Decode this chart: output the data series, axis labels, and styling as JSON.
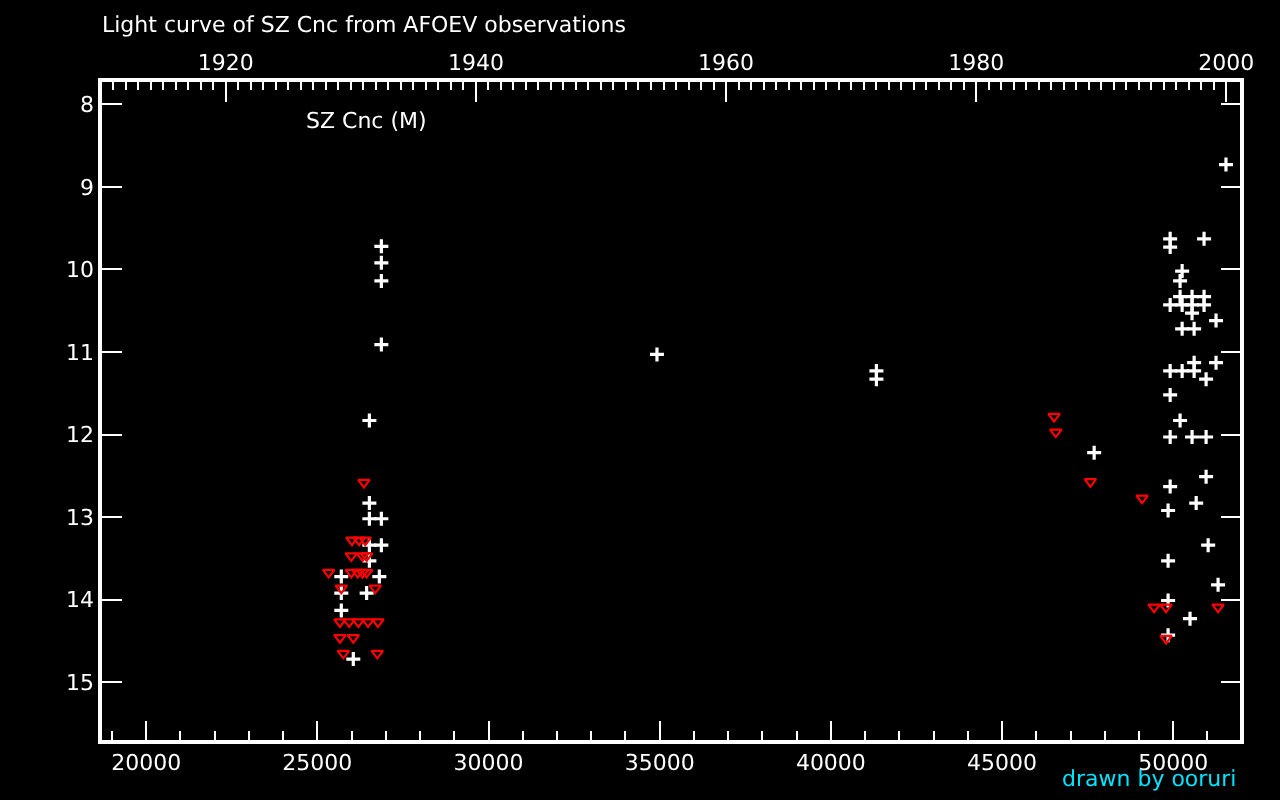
{
  "chart_data": {
    "type": "scatter",
    "title": "Light curve of SZ Cnc from AFOEV observations",
    "annotations": [
      "SZ Cnc (M)",
      "drawn by ooruri"
    ],
    "xlim": [
      18710,
      51950
    ],
    "ylim": [
      15.7,
      7.73
    ],
    "xticks": [
      {
        "value": 19000,
        "label": null
      },
      20000,
      {
        "value": 21000,
        "label": null
      },
      {
        "value": 22000,
        "label": null
      },
      {
        "value": 23000,
        "label": null
      },
      {
        "value": 24000,
        "label": null
      },
      25000,
      {
        "value": 26000,
        "label": null
      },
      {
        "value": 27000,
        "label": null
      },
      {
        "value": 28000,
        "label": null
      },
      {
        "value": 29000,
        "label": null
      },
      30000,
      {
        "value": 31000,
        "label": null
      },
      {
        "value": 32000,
        "label": null
      },
      {
        "value": 33000,
        "label": null
      },
      {
        "value": 34000,
        "label": null
      },
      35000,
      {
        "value": 36000,
        "label": null
      },
      {
        "value": 37000,
        "label": null
      },
      {
        "value": 38000,
        "label": null
      },
      {
        "value": 39000,
        "label": null
      },
      40000,
      {
        "value": 41000,
        "label": null
      },
      {
        "value": 42000,
        "label": null
      },
      {
        "value": 43000,
        "label": null
      },
      {
        "value": 44000,
        "label": null
      },
      45000,
      {
        "value": 46000,
        "label": null
      },
      {
        "value": 47000,
        "label": null
      },
      {
        "value": 48000,
        "label": null
      },
      {
        "value": 49000,
        "label": null
      },
      50000,
      {
        "value": 51000,
        "label": null
      }
    ],
    "yticks": [
      8,
      9,
      10,
      11,
      12,
      13,
      14,
      15
    ],
    "x2lim": [
      1910.1,
      2001.1
    ],
    "x2ticks": [
      {
        "value": 1911,
        "label": null
      },
      {
        "value": 1912,
        "label": null
      },
      {
        "value": 1913,
        "label": null
      },
      {
        "value": 1914,
        "label": null
      },
      {
        "value": 1915,
        "label": null
      },
      {
        "value": 1916,
        "label": null
      },
      {
        "value": 1917,
        "label": null
      },
      {
        "value": 1918,
        "label": null
      },
      {
        "value": 1919,
        "label": null
      },
      1920,
      {
        "value": 1921,
        "label": null
      },
      {
        "value": 1922,
        "label": null
      },
      {
        "value": 1923,
        "label": null
      },
      {
        "value": 1924,
        "label": null
      },
      {
        "value": 1925,
        "label": null
      },
      {
        "value": 1926,
        "label": null
      },
      {
        "value": 1927,
        "label": null
      },
      {
        "value": 1928,
        "label": null
      },
      {
        "value": 1929,
        "label": null
      },
      {
        "value": 1930,
        "label": null
      },
      {
        "value": 1931,
        "label": null
      },
      {
        "value": 1932,
        "label": null
      },
      {
        "value": 1933,
        "label": null
      },
      {
        "value": 1934,
        "label": null
      },
      {
        "value": 1935,
        "label": null
      },
      {
        "value": 1936,
        "label": null
      },
      {
        "value": 1937,
        "label": null
      },
      {
        "value": 1938,
        "label": null
      },
      {
        "value": 1939,
        "label": null
      },
      1940,
      {
        "value": 1941,
        "label": null
      },
      {
        "value": 1942,
        "label": null
      },
      {
        "value": 1943,
        "label": null
      },
      {
        "value": 1944,
        "label": null
      },
      {
        "value": 1945,
        "label": null
      },
      {
        "value": 1946,
        "label": null
      },
      {
        "value": 1947,
        "label": null
      },
      {
        "value": 1948,
        "label": null
      },
      {
        "value": 1949,
        "label": null
      },
      {
        "value": 1950,
        "label": null
      },
      {
        "value": 1951,
        "label": null
      },
      {
        "value": 1952,
        "label": null
      },
      {
        "value": 1953,
        "label": null
      },
      {
        "value": 1954,
        "label": null
      },
      {
        "value": 1955,
        "label": null
      },
      {
        "value": 1956,
        "label": null
      },
      {
        "value": 1957,
        "label": null
      },
      {
        "value": 1958,
        "label": null
      },
      {
        "value": 1959,
        "label": null
      },
      1960,
      {
        "value": 1961,
        "label": null
      },
      {
        "value": 1962,
        "label": null
      },
      {
        "value": 1963,
        "label": null
      },
      {
        "value": 1964,
        "label": null
      },
      {
        "value": 1965,
        "label": null
      },
      {
        "value": 1966,
        "label": null
      },
      {
        "value": 1967,
        "label": null
      },
      {
        "value": 1968,
        "label": null
      },
      {
        "value": 1969,
        "label": null
      },
      {
        "value": 1970,
        "label": null
      },
      {
        "value": 1971,
        "label": null
      },
      {
        "value": 1972,
        "label": null
      },
      {
        "value": 1973,
        "label": null
      },
      {
        "value": 1974,
        "label": null
      },
      {
        "value": 1975,
        "label": null
      },
      {
        "value": 1976,
        "label": null
      },
      {
        "value": 1977,
        "label": null
      },
      {
        "value": 1978,
        "label": null
      },
      {
        "value": 1979,
        "label": null
      },
      1980,
      {
        "value": 1981,
        "label": null
      },
      {
        "value": 1982,
        "label": null
      },
      {
        "value": 1983,
        "label": null
      },
      {
        "value": 1984,
        "label": null
      },
      {
        "value": 1985,
        "label": null
      },
      {
        "value": 1986,
        "label": null
      },
      {
        "value": 1987,
        "label": null
      },
      {
        "value": 1988,
        "label": null
      },
      {
        "value": 1989,
        "label": null
      },
      {
        "value": 1990,
        "label": null
      },
      {
        "value": 1991,
        "label": null
      },
      {
        "value": 1992,
        "label": null
      },
      {
        "value": 1993,
        "label": null
      },
      {
        "value": 1994,
        "label": null
      },
      {
        "value": 1995,
        "label": null
      },
      {
        "value": 1996,
        "label": null
      },
      {
        "value": 1997,
        "label": null
      },
      {
        "value": 1998,
        "label": null
      },
      {
        "value": 1999,
        "label": null
      },
      2000,
      {
        "value": 2001,
        "label": null
      }
    ],
    "series": [
      {
        "color": "#ffffff",
        "marker": "cross",
        "x": [
          26870,
          26870,
          26870,
          26870,
          26520,
          26520,
          26520,
          26870,
          26520,
          26870,
          26520,
          25700,
          26810,
          25700,
          26440,
          25700,
          26050,
          34920,
          41330,
          41330,
          47690,
          51540,
          49910,
          50900,
          49910,
          50260,
          50200,
          50200,
          50550,
          50900,
          49910,
          50260,
          50550,
          50900,
          50550,
          51250,
          50260,
          50610,
          50610,
          51250,
          49910,
          50260,
          50610,
          50960,
          49910,
          50200,
          49910,
          50550,
          50960,
          50960,
          49910,
          50670,
          49850,
          51020,
          49850,
          51310,
          49850,
          50490,
          49850
        ],
        "values": [
          9.72,
          9.92,
          10.14,
          10.91,
          11.83,
          12.83,
          13.02,
          13.02,
          13.34,
          13.34,
          13.53,
          13.72,
          13.72,
          13.92,
          13.92,
          14.13,
          14.72,
          11.03,
          11.23,
          11.33,
          12.22,
          8.73,
          9.63,
          9.63,
          9.73,
          10.02,
          10.14,
          10.33,
          10.33,
          10.33,
          10.43,
          10.43,
          10.43,
          10.43,
          10.53,
          10.62,
          10.72,
          10.72,
          11.13,
          11.13,
          11.23,
          11.23,
          11.23,
          11.33,
          11.52,
          11.83,
          12.03,
          12.03,
          12.03,
          12.51,
          12.63,
          12.83,
          12.92,
          13.34,
          13.53,
          13.82,
          14.01,
          14.23,
          14.43
        ]
      },
      {
        "color": "#ff0000",
        "marker": "triangle",
        "x": [
          26360,
          26010,
          26220,
          26400,
          25990,
          26320,
          26440,
          25330,
          25990,
          26180,
          26320,
          26440,
          25700,
          26690,
          25660,
          25930,
          26200,
          26480,
          26770,
          25660,
          26050,
          25760,
          26750,
          46520,
          46570,
          47580,
          49090,
          49440,
          49790,
          51310,
          49790
        ],
        "values": [
          12.58,
          13.28,
          13.28,
          13.28,
          13.47,
          13.47,
          13.47,
          13.67,
          13.67,
          13.67,
          13.67,
          13.67,
          13.86,
          13.86,
          14.27,
          14.27,
          14.27,
          14.27,
          14.27,
          14.46,
          14.46,
          14.65,
          14.65,
          11.78,
          11.97,
          12.57,
          12.77,
          14.09,
          14.09,
          14.09,
          14.47
        ]
      }
    ]
  }
}
